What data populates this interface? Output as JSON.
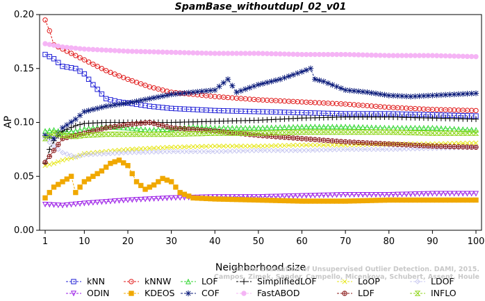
{
  "watermark": {
    "line1": "Campos, Zimek, Sander, Campello, Micenkova, Schubert, Assent, Houle",
    "line2": "On the Evaluation of Unsupervised Outlier Detection. DAMI, 2015."
  },
  "chart_data": {
    "type": "line",
    "title": "SpamBase_withoutdupl_02_v01",
    "xlabel": "Neighborhood size",
    "ylabel": "AP",
    "xlim": [
      1,
      100
    ],
    "ylim": [
      0,
      0.2
    ],
    "xticks": [
      1,
      10,
      20,
      30,
      40,
      50,
      60,
      70,
      80,
      90,
      100
    ],
    "yticks": [
      0.0,
      0.05,
      0.1,
      0.15,
      0.2
    ],
    "ytick_labels": [
      "0.00",
      "0.05",
      "0.10",
      "0.15",
      "0.20"
    ],
    "grid": false,
    "legend_position": "bottom",
    "series": [
      {
        "name": "kNN",
        "color": "#1f1fd6",
        "marker": "square",
        "points": [
          [
            1,
            0.163
          ],
          [
            3,
            0.159
          ],
          [
            5,
            0.152
          ],
          [
            8,
            0.15
          ],
          [
            10,
            0.145
          ],
          [
            12,
            0.135
          ],
          [
            15,
            0.122
          ],
          [
            18,
            0.119
          ],
          [
            20,
            0.118
          ],
          [
            25,
            0.115
          ],
          [
            30,
            0.113
          ],
          [
            40,
            0.111
          ],
          [
            50,
            0.11
          ],
          [
            60,
            0.109
          ],
          [
            70,
            0.108
          ],
          [
            80,
            0.108
          ],
          [
            90,
            0.107
          ],
          [
            100,
            0.106
          ]
        ]
      },
      {
        "name": "kNNW",
        "color": "#e01a1a",
        "marker": "circle",
        "points": [
          [
            1,
            0.195
          ],
          [
            2,
            0.185
          ],
          [
            3,
            0.172
          ],
          [
            5,
            0.168
          ],
          [
            8,
            0.162
          ],
          [
            10,
            0.158
          ],
          [
            15,
            0.148
          ],
          [
            20,
            0.14
          ],
          [
            25,
            0.133
          ],
          [
            30,
            0.128
          ],
          [
            40,
            0.124
          ],
          [
            50,
            0.121
          ],
          [
            60,
            0.119
          ],
          [
            70,
            0.117
          ],
          [
            80,
            0.114
          ],
          [
            90,
            0.112
          ],
          [
            100,
            0.111
          ]
        ]
      },
      {
        "name": "LOF",
        "color": "#2fd62f",
        "marker": "triangle-up",
        "points": [
          [
            1,
            0.092
          ],
          [
            3,
            0.093
          ],
          [
            5,
            0.091
          ],
          [
            8,
            0.092
          ],
          [
            10,
            0.094
          ],
          [
            15,
            0.096
          ],
          [
            20,
            0.095
          ],
          [
            25,
            0.093
          ],
          [
            30,
            0.094
          ],
          [
            35,
            0.096
          ],
          [
            40,
            0.095
          ],
          [
            50,
            0.095
          ],
          [
            60,
            0.096
          ],
          [
            70,
            0.096
          ],
          [
            80,
            0.095
          ],
          [
            90,
            0.095
          ],
          [
            100,
            0.093
          ]
        ]
      },
      {
        "name": "SimplifiedLOF",
        "color": "#000000",
        "marker": "plus",
        "points": [
          [
            1,
            0.062
          ],
          [
            2,
            0.075
          ],
          [
            3,
            0.083
          ],
          [
            5,
            0.092
          ],
          [
            8,
            0.097
          ],
          [
            10,
            0.099
          ],
          [
            15,
            0.1
          ],
          [
            20,
            0.1
          ],
          [
            30,
            0.1
          ],
          [
            40,
            0.101
          ],
          [
            50,
            0.102
          ],
          [
            60,
            0.104
          ],
          [
            70,
            0.105
          ],
          [
            80,
            0.105
          ],
          [
            90,
            0.104
          ],
          [
            100,
            0.103
          ]
        ]
      },
      {
        "name": "LoOP",
        "color": "#e6e61a",
        "marker": "x",
        "points": [
          [
            1,
            0.06
          ],
          [
            3,
            0.062
          ],
          [
            5,
            0.065
          ],
          [
            8,
            0.068
          ],
          [
            10,
            0.071
          ],
          [
            15,
            0.073
          ],
          [
            20,
            0.075
          ],
          [
            30,
            0.077
          ],
          [
            40,
            0.078
          ],
          [
            50,
            0.078
          ],
          [
            60,
            0.079
          ],
          [
            70,
            0.079
          ],
          [
            80,
            0.08
          ],
          [
            90,
            0.08
          ],
          [
            100,
            0.081
          ]
        ]
      },
      {
        "name": "LDOF",
        "color": "#c8c8f0",
        "marker": "diamond",
        "points": [
          [
            1,
            0.085
          ],
          [
            3,
            0.078
          ],
          [
            5,
            0.072
          ],
          [
            8,
            0.068
          ],
          [
            10,
            0.07
          ],
          [
            15,
            0.071
          ],
          [
            20,
            0.072
          ],
          [
            30,
            0.073
          ],
          [
            40,
            0.073
          ],
          [
            50,
            0.074
          ],
          [
            60,
            0.074
          ],
          [
            70,
            0.075
          ],
          [
            80,
            0.075
          ],
          [
            90,
            0.076
          ],
          [
            100,
            0.077
          ]
        ]
      },
      {
        "name": "ODIN",
        "color": "#9a1ae6",
        "marker": "triangle-down",
        "points": [
          [
            1,
            0.024
          ],
          [
            5,
            0.023
          ],
          [
            10,
            0.025
          ],
          [
            20,
            0.028
          ],
          [
            30,
            0.03
          ],
          [
            40,
            0.031
          ],
          [
            50,
            0.031
          ],
          [
            60,
            0.032
          ],
          [
            70,
            0.033
          ],
          [
            80,
            0.033
          ],
          [
            90,
            0.034
          ],
          [
            100,
            0.034
          ]
        ]
      },
      {
        "name": "KDEOS",
        "color": "#f0a800",
        "marker": "square-filled",
        "points": [
          [
            1,
            0.03
          ],
          [
            3,
            0.04
          ],
          [
            5,
            0.045
          ],
          [
            7,
            0.05
          ],
          [
            8,
            0.035
          ],
          [
            10,
            0.045
          ],
          [
            12,
            0.05
          ],
          [
            14,
            0.055
          ],
          [
            16,
            0.062
          ],
          [
            18,
            0.065
          ],
          [
            20,
            0.06
          ],
          [
            22,
            0.045
          ],
          [
            24,
            0.038
          ],
          [
            26,
            0.042
          ],
          [
            28,
            0.048
          ],
          [
            30,
            0.045
          ],
          [
            32,
            0.035
          ],
          [
            35,
            0.03
          ],
          [
            40,
            0.029
          ],
          [
            50,
            0.028
          ],
          [
            60,
            0.027
          ],
          [
            70,
            0.027
          ],
          [
            80,
            0.028
          ],
          [
            90,
            0.028
          ],
          [
            100,
            0.028
          ]
        ]
      },
      {
        "name": "COF",
        "color": "#0a1a7a",
        "marker": "asterisk",
        "points": [
          [
            1,
            0.088
          ],
          [
            3,
            0.085
          ],
          [
            5,
            0.095
          ],
          [
            8,
            0.103
          ],
          [
            10,
            0.11
          ],
          [
            15,
            0.115
          ],
          [
            20,
            0.118
          ],
          [
            25,
            0.122
          ],
          [
            30,
            0.126
          ],
          [
            35,
            0.128
          ],
          [
            40,
            0.13
          ],
          [
            43,
            0.14
          ],
          [
            45,
            0.128
          ],
          [
            50,
            0.135
          ],
          [
            55,
            0.14
          ],
          [
            60,
            0.147
          ],
          [
            62,
            0.15
          ],
          [
            63,
            0.14
          ],
          [
            65,
            0.138
          ],
          [
            70,
            0.13
          ],
          [
            75,
            0.128
          ],
          [
            80,
            0.125
          ],
          [
            85,
            0.124
          ],
          [
            90,
            0.125
          ],
          [
            95,
            0.126
          ],
          [
            100,
            0.127
          ]
        ]
      },
      {
        "name": "FastABOD",
        "color": "#f5b4f5",
        "marker": "circle-filled",
        "points": [
          [
            1,
            0.173
          ],
          [
            5,
            0.17
          ],
          [
            10,
            0.168
          ],
          [
            20,
            0.166
          ],
          [
            30,
            0.165
          ],
          [
            40,
            0.164
          ],
          [
            50,
            0.164
          ],
          [
            60,
            0.163
          ],
          [
            70,
            0.163
          ],
          [
            80,
            0.162
          ],
          [
            90,
            0.162
          ],
          [
            100,
            0.161
          ]
        ]
      },
      {
        "name": "LDF",
        "color": "#8b1a1a",
        "marker": "circle-plus",
        "points": [
          [
            1,
            0.063
          ],
          [
            5,
            0.085
          ],
          [
            10,
            0.09
          ],
          [
            15,
            0.095
          ],
          [
            20,
            0.098
          ],
          [
            25,
            0.1
          ],
          [
            30,
            0.095
          ],
          [
            40,
            0.092
          ],
          [
            50,
            0.088
          ],
          [
            60,
            0.085
          ],
          [
            70,
            0.082
          ],
          [
            80,
            0.08
          ],
          [
            90,
            0.078
          ],
          [
            100,
            0.077
          ]
        ]
      },
      {
        "name": "INFLO",
        "color": "#8fd61a",
        "marker": "hourglass",
        "points": [
          [
            1,
            0.085
          ],
          [
            3,
            0.09
          ],
          [
            5,
            0.088
          ],
          [
            8,
            0.087
          ],
          [
            10,
            0.088
          ],
          [
            15,
            0.089
          ],
          [
            20,
            0.089
          ],
          [
            30,
            0.089
          ],
          [
            40,
            0.09
          ],
          [
            50,
            0.09
          ],
          [
            60,
            0.091
          ],
          [
            70,
            0.091
          ],
          [
            80,
            0.091
          ],
          [
            90,
            0.09
          ],
          [
            100,
            0.09
          ]
        ]
      }
    ]
  }
}
